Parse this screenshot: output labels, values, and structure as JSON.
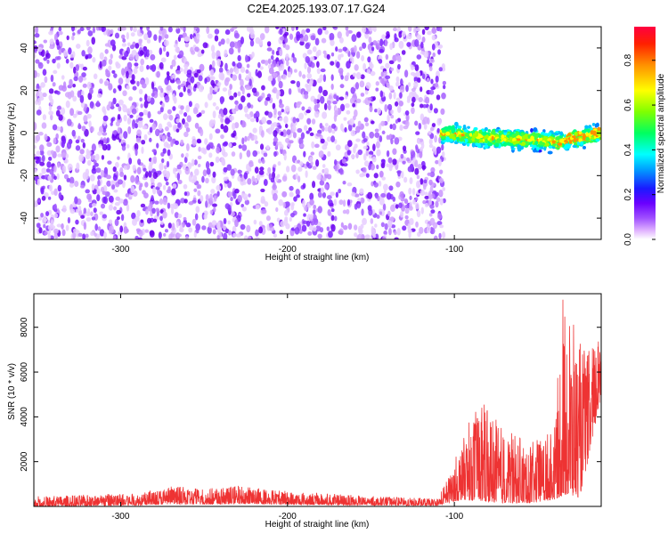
{
  "title": "C2E4.2025.193.07.17.G24",
  "chart_data": [
    {
      "type": "heatmap",
      "xlabel": "Height of straight line (km)",
      "ylabel": "Frequency (Hz)",
      "xlim": [
        -352,
        -12
      ],
      "ylim": [
        -50,
        50
      ],
      "xticks": [
        -300,
        -200,
        -100
      ],
      "yticks": [
        -40,
        -20,
        0,
        20,
        40
      ],
      "colorbar": {
        "label": "Normalized spectral amplitude",
        "range": [
          0,
          0.95
        ],
        "ticks": [
          0.0,
          0.2,
          0.4,
          0.6,
          0.8
        ]
      },
      "regions": [
        {
          "x_range": [
            -352,
            -108
          ],
          "freq_range": [
            -50,
            50
          ],
          "amplitude_level": 0.1
        },
        {
          "x_range": [
            -108,
            -12
          ],
          "freq_center": [
            0,
            -2,
            -3,
            -4,
            0
          ],
          "freq_halfwidth": 6,
          "amplitude_level": 0.4,
          "peak_amplitude": 0.9
        }
      ],
      "grid": false
    },
    {
      "type": "line",
      "xlabel": "Height of straight line (km)",
      "ylabel": "SNR (10 * v/v)",
      "xlim": [
        -352,
        -12
      ],
      "ylim": [
        0,
        9500
      ],
      "xticks": [
        -300,
        -200,
        -100
      ],
      "yticks": [
        2000,
        4000,
        6000,
        8000
      ],
      "color": "#ee3333",
      "envelope": [
        {
          "x": -352,
          "low": 0,
          "high": 450
        },
        {
          "x": -290,
          "low": 50,
          "high": 600
        },
        {
          "x": -270,
          "low": 100,
          "high": 900
        },
        {
          "x": -240,
          "low": 80,
          "high": 800
        },
        {
          "x": -230,
          "low": 120,
          "high": 950
        },
        {
          "x": -200,
          "low": 80,
          "high": 700
        },
        {
          "x": -150,
          "low": 50,
          "high": 450
        },
        {
          "x": -110,
          "low": 30,
          "high": 350
        },
        {
          "x": -102,
          "low": 200,
          "high": 1600
        },
        {
          "x": -95,
          "low": 300,
          "high": 3200
        },
        {
          "x": -85,
          "low": 250,
          "high": 4800
        },
        {
          "x": -70,
          "low": 150,
          "high": 3500
        },
        {
          "x": -55,
          "low": 150,
          "high": 2800
        },
        {
          "x": -40,
          "low": 300,
          "high": 3500
        },
        {
          "x": -35,
          "low": 500,
          "high": 9500
        },
        {
          "x": -30,
          "low": 500,
          "high": 8600
        },
        {
          "x": -25,
          "low": 400,
          "high": 7400
        },
        {
          "x": -20,
          "low": 2000,
          "high": 7000
        },
        {
          "x": -12,
          "low": 5000,
          "high": 7800
        }
      ]
    }
  ]
}
